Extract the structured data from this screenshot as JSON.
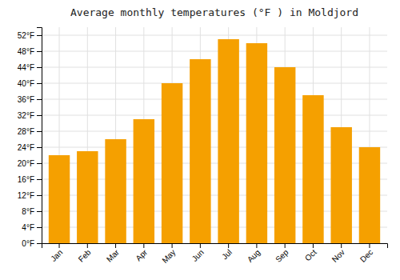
{
  "chart_data": {
    "type": "bar",
    "title": "Average monthly temperatures (°F ) in Moldjord",
    "categories": [
      "Jan",
      "Feb",
      "Mar",
      "Apr",
      "May",
      "Jun",
      "Jul",
      "Aug",
      "Sep",
      "Oct",
      "Nov",
      "Dec"
    ],
    "values": [
      22,
      23,
      26,
      31,
      40,
      46,
      51,
      50,
      44,
      37,
      29,
      24
    ],
    "color": "#F5A000",
    "ylim": [
      0,
      54
    ],
    "yticks": [
      {
        "value": 0,
        "label": "0°F"
      },
      {
        "value": 4,
        "label": "4°F"
      },
      {
        "value": 8,
        "label": "8°F"
      },
      {
        "value": 12,
        "label": "12°F"
      },
      {
        "value": 16,
        "label": "16°F"
      },
      {
        "value": 20,
        "label": "20°F"
      },
      {
        "value": 24,
        "label": "24°F"
      },
      {
        "value": 28,
        "label": "28°F"
      },
      {
        "value": 32,
        "label": "32°F"
      },
      {
        "value": 36,
        "label": "36°F"
      },
      {
        "value": 40,
        "label": "40°F"
      },
      {
        "value": 44,
        "label": "44°F"
      },
      {
        "value": 48,
        "label": "48°F"
      },
      {
        "value": 52,
        "label": "52°F"
      }
    ],
    "grid": true
  }
}
